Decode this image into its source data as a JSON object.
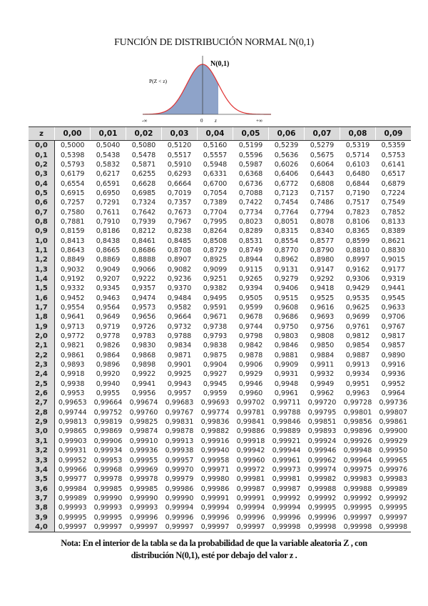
{
  "title": "FUNCIÓN DE DISTRIBUCIÓN NORMAL N(0,1)",
  "graph": {
    "curve_label": "N(0,1)",
    "area_label": "P(Z < z)",
    "left_label": "-∞",
    "zero_label": "0",
    "z_label": "z",
    "right_label": "+∞",
    "fill_color": "#8ea3c9",
    "curve_color": "#e03030"
  },
  "table": {
    "header": [
      "z",
      "0,00",
      "0,01",
      "0,02",
      "0,03",
      "0,04",
      "0,05",
      "0,06",
      "0,07",
      "0,08",
      "0,09"
    ],
    "rows": [
      [
        "0,0",
        "0,5000",
        "0,5040",
        "0,5080",
        "0,5120",
        "0,5160",
        "0,5199",
        "0,5239",
        "0,5279",
        "0,5319",
        "0,5359"
      ],
      [
        "0,1",
        "0,5398",
        "0,5438",
        "0,5478",
        "0,5517",
        "0,5557",
        "0,5596",
        "0,5636",
        "0,5675",
        "0,5714",
        "0,5753"
      ],
      [
        "0,2",
        "0,5793",
        "0,5832",
        "0,5871",
        "0,5910",
        "0,5948",
        "0,5987",
        "0,6026",
        "0,6064",
        "0,6103",
        "0,6141"
      ],
      [
        "0,3",
        "0,6179",
        "0,6217",
        "0,6255",
        "0,6293",
        "0,6331",
        "0,6368",
        "0,6406",
        "0,6443",
        "0,6480",
        "0,6517"
      ],
      [
        "0,4",
        "0,6554",
        "0,6591",
        "0,6628",
        "0,6664",
        "0,6700",
        "0,6736",
        "0,6772",
        "0,6808",
        "0,6844",
        "0,6879"
      ],
      [
        "0,5",
        "0,6915",
        "0,6950",
        "0,6985",
        "0,7019",
        "0,7054",
        "0,7088",
        "0,7123",
        "0,7157",
        "0,7190",
        "0,7224"
      ],
      [
        "0,6",
        "0,7257",
        "0,7291",
        "0,7324",
        "0,7357",
        "0,7389",
        "0,7422",
        "0,7454",
        "0,7486",
        "0,7517",
        "0,7549"
      ],
      [
        "0,7",
        "0,7580",
        "0,7611",
        "0,7642",
        "0,7673",
        "0,7704",
        "0,7734",
        "0,7764",
        "0,7794",
        "0,7823",
        "0,7852"
      ],
      [
        "0,8",
        "0,7881",
        "0,7910",
        "0,7939",
        "0,7967",
        "0,7995",
        "0,8023",
        "0,8051",
        "0,8078",
        "0,8106",
        "0,8133"
      ],
      [
        "0,9",
        "0,8159",
        "0,8186",
        "0,8212",
        "0,8238",
        "0,8264",
        "0,8289",
        "0,8315",
        "0,8340",
        "0,8365",
        "0,8389"
      ],
      [
        "1,0",
        "0,8413",
        "0,8438",
        "0,8461",
        "0,8485",
        "0,8508",
        "0,8531",
        "0,8554",
        "0,8577",
        "0,8599",
        "0,8621"
      ],
      [
        "1,1",
        "0,8643",
        "0,8665",
        "0,8686",
        "0,8708",
        "0,8729",
        "0,8749",
        "0,8770",
        "0,8790",
        "0,8810",
        "0,8830"
      ],
      [
        "1,2",
        "0,8849",
        "0,8869",
        "0,8888",
        "0,8907",
        "0,8925",
        "0,8944",
        "0,8962",
        "0,8980",
        "0,8997",
        "0,9015"
      ],
      [
        "1,3",
        "0,9032",
        "0,9049",
        "0,9066",
        "0,9082",
        "0,9099",
        "0,9115",
        "0,9131",
        "0,9147",
        "0,9162",
        "0,9177"
      ],
      [
        "1,4",
        "0,9192",
        "0,9207",
        "0,9222",
        "0,9236",
        "0,9251",
        "0,9265",
        "0,9279",
        "0,9292",
        "0,9306",
        "0,9319"
      ],
      [
        "1,5",
        "0,9332",
        "0,9345",
        "0,9357",
        "0,9370",
        "0,9382",
        "0,9394",
        "0,9406",
        "0,9418",
        "0,9429",
        "0,9441"
      ],
      [
        "1,6",
        "0,9452",
        "0,9463",
        "0,9474",
        "0,9484",
        "0,9495",
        "0,9505",
        "0,9515",
        "0,9525",
        "0,9535",
        "0,9545"
      ],
      [
        "1,7",
        "0,9554",
        "0,9564",
        "0,9573",
        "0,9582",
        "0,9591",
        "0,9599",
        "0,9608",
        "0,9616",
        "0,9625",
        "0,9633"
      ],
      [
        "1,8",
        "0,9641",
        "0,9649",
        "0,9656",
        "0,9664",
        "0,9671",
        "0,9678",
        "0,9686",
        "0,9693",
        "0,9699",
        "0,9706"
      ],
      [
        "1,9",
        "0,9713",
        "0,9719",
        "0,9726",
        "0,9732",
        "0,9738",
        "0,9744",
        "0,9750",
        "0,9756",
        "0,9761",
        "0,9767"
      ],
      [
        "2,0",
        "0,9772",
        "0,9778",
        "0,9783",
        "0,9788",
        "0,9793",
        "0,9798",
        "0,9803",
        "0,9808",
        "0,9812",
        "0,9817"
      ],
      [
        "2,1",
        "0,9821",
        "0,9826",
        "0,9830",
        "0,9834",
        "0,9838",
        "0,9842",
        "0,9846",
        "0,9850",
        "0,9854",
        "0,9857"
      ],
      [
        "2,2",
        "0,9861",
        "0,9864",
        "0,9868",
        "0,9871",
        "0,9875",
        "0,9878",
        "0,9881",
        "0,9884",
        "0,9887",
        "0,9890"
      ],
      [
        "2,3",
        "0,9893",
        "0,9896",
        "0,9898",
        "0,9901",
        "0,9904",
        "0,9906",
        "0,9909",
        "0,9911",
        "0,9913",
        "0,9916"
      ],
      [
        "2,4",
        "0,9918",
        "0,9920",
        "0,9922",
        "0,9925",
        "0,9927",
        "0,9929",
        "0,9931",
        "0,9932",
        "0,9934",
        "0,9936"
      ],
      [
        "2,5",
        "0,9938",
        "0,9940",
        "0,9941",
        "0,9943",
        "0,9945",
        "0,9946",
        "0,9948",
        "0,9949",
        "0,9951",
        "0,9952"
      ],
      [
        "2,6",
        "0,9953",
        "0,9955",
        "0,9956",
        "0,9957",
        "0,9959",
        "0,9960",
        "0,9961",
        "0,9962",
        "0,9963",
        "0,9964"
      ],
      [
        "2,7",
        "0,99653",
        "0,99664",
        "0,99674",
        "0,99683",
        "0,99693",
        "0,99702",
        "0,99711",
        "0,99720",
        "0,99728",
        "0,99736"
      ],
      [
        "2,8",
        "0,99744",
        "0,99752",
        "0,99760",
        "0,99767",
        "0,99774",
        "0,99781",
        "0,99788",
        "0,99795",
        "0,99801",
        "0,99807"
      ],
      [
        "2,9",
        "0,99813",
        "0,99819",
        "0,99825",
        "0,99831",
        "0,99836",
        "0,99841",
        "0,99846",
        "0,99851",
        "0,99856",
        "0,99861"
      ],
      [
        "3,0",
        "0,99865",
        "0,99869",
        "0,99874",
        "0,99878",
        "0,99882",
        "0,99886",
        "0,99889",
        "0,99893",
        "0,99896",
        "0,99900"
      ],
      [
        "3,1",
        "0,99903",
        "0,99906",
        "0,99910",
        "0,99913",
        "0,99916",
        "0,99918",
        "0,99921",
        "0,99924",
        "0,99926",
        "0,99929"
      ],
      [
        "3,2",
        "0,99931",
        "0,99934",
        "0,99936",
        "0,99938",
        "0,99940",
        "0,99942",
        "0,99944",
        "0,99946",
        "0,99948",
        "0,99950"
      ],
      [
        "3,3",
        "0,99952",
        "0,99953",
        "0,99955",
        "0,99957",
        "0,99958",
        "0,99960",
        "0,99961",
        "0,99962",
        "0,99964",
        "0,99965"
      ],
      [
        "3,4",
        "0,99966",
        "0,99968",
        "0,99969",
        "0,99970",
        "0,99971",
        "0,99972",
        "0,99973",
        "0,99974",
        "0,99975",
        "0,99976"
      ],
      [
        "3,5",
        "0,99977",
        "0,99978",
        "0,99978",
        "0,99979",
        "0,99980",
        "0,99981",
        "0,99981",
        "0,99982",
        "0,99983",
        "0,99983"
      ],
      [
        "3,6",
        "0,99984",
        "0,99985",
        "0,99985",
        "0,99986",
        "0,99986",
        "0,99987",
        "0,99987",
        "0,99988",
        "0,99988",
        "0,99989"
      ],
      [
        "3,7",
        "0,99989",
        "0,99990",
        "0,99990",
        "0,99990",
        "0,99991",
        "0,99991",
        "0,99992",
        "0,99992",
        "0,99992",
        "0,99992"
      ],
      [
        "3,8",
        "0,99993",
        "0,99993",
        "0,99993",
        "0,99994",
        "0,99994",
        "0,99994",
        "0,99994",
        "0,99995",
        "0,99995",
        "0,99995"
      ],
      [
        "3,9",
        "0,99995",
        "0,99995",
        "0,99996",
        "0,99996",
        "0,99996",
        "0,99996",
        "0,99996",
        "0,99996",
        "0,99997",
        "0,99997"
      ],
      [
        "4,0",
        "0,99997",
        "0,99997",
        "0,99997",
        "0,99997",
        "0,99997",
        "0,99997",
        "0,99998",
        "0,99998",
        "0,99998",
        "0,99998"
      ]
    ]
  },
  "note": {
    "line1": "Nota: En el interior de la tabla se da la probabilidad de que la variable aleatoria Z , con",
    "line2": "distribución N(0,1), esté por debajo del valor z ."
  }
}
